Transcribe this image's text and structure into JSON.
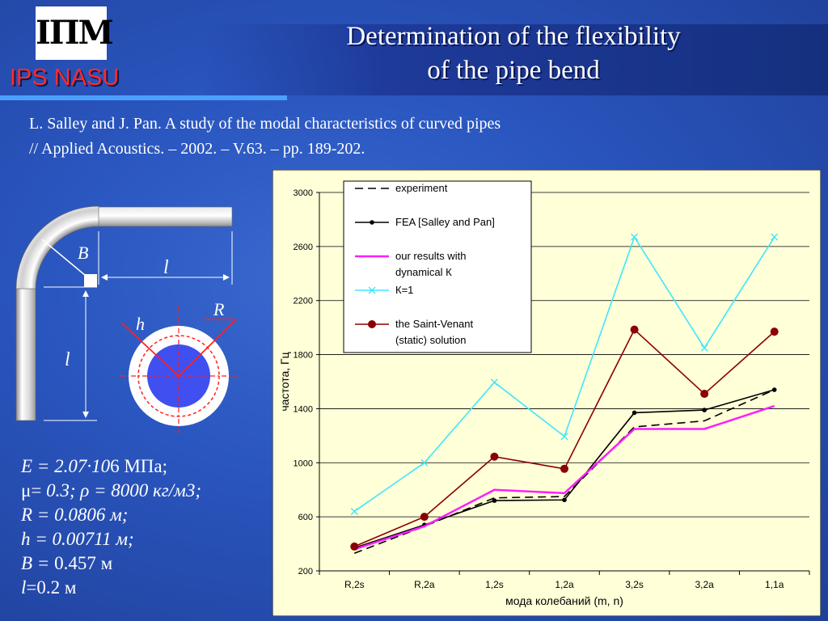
{
  "header": {
    "logo_text": "ІПМ",
    "org": "IPS NASU",
    "title_lines": [
      "Determination of the flexibility",
      "of the pipe bend"
    ]
  },
  "reference": {
    "lines": [
      "L. Salley and J. Pan. A study of the modal characteristics of curved pipes",
      "// Applied Acoustics. – 2002. – V.63. – pp. 189-202."
    ]
  },
  "diagram": {
    "label_B": "B",
    "label_l_top": "l",
    "label_l_side": "l",
    "label_h": "h",
    "label_R": "R"
  },
  "params": [
    {
      "pre": "",
      "it": "E = 2.07·10",
      "post": "6 МПа;"
    },
    {
      "pre": "μ= ",
      "it": "0.3; ρ = 8000 кг/м3;",
      "post": ""
    },
    {
      "pre": "",
      "it": "R = 0.0806 м;",
      "post": ""
    },
    {
      "pre": "",
      "it": "h = 0.00711 м;",
      "post": ""
    },
    {
      "pre": "",
      "it": "B =",
      "post": " 0.457 м"
    },
    {
      "pre": "",
      "it": "l",
      "post": "=0.2 м"
    }
  ],
  "colors": {
    "accent_divider": "#4aa0ff",
    "org_text": "#ff2a2a",
    "chart_bg": "#ffffd8"
  },
  "chart_data": {
    "type": "line",
    "categories": [
      "R,2s",
      "R,2a",
      "1,2s",
      "1,2a",
      "3,2s",
      "3,2a",
      "1,1a"
    ],
    "xlabel": "мода колебаний (m, n)",
    "ylabel": "частота, Гц",
    "ylim": [
      200,
      3000
    ],
    "yticks": [
      200,
      600,
      1000,
      1400,
      1800,
      2200,
      2600,
      3000
    ],
    "grid": true,
    "legend_position": "top-left",
    "series": [
      {
        "name": "experiment",
        "values": [
          330,
          530,
          740,
          750,
          1265,
          1310,
          1540
        ],
        "color": "#000000",
        "style": "dashed",
        "marker": "none"
      },
      {
        "name": "FEA [Salley and Pan]",
        "values": [
          370,
          540,
          720,
          725,
          1370,
          1390,
          1540
        ],
        "color": "#000000",
        "style": "solid",
        "marker": "dot"
      },
      {
        "name": "our results with dynamical К",
        "values": [
          360,
          530,
          800,
          775,
          1250,
          1250,
          1420
        ],
        "color": "#ff1dff",
        "style": "solid",
        "marker": "none"
      },
      {
        "name": "К=1",
        "values": [
          640,
          1000,
          1595,
          1195,
          2670,
          1850,
          2670
        ],
        "color": "#3fe6ff",
        "style": "solid",
        "marker": "x"
      },
      {
        "name": "the Saint-Venant (static) solution",
        "values": [
          380,
          600,
          1045,
          955,
          1985,
          1510,
          1970
        ],
        "color": "#8b0000",
        "style": "solid",
        "marker": "circle"
      }
    ]
  }
}
